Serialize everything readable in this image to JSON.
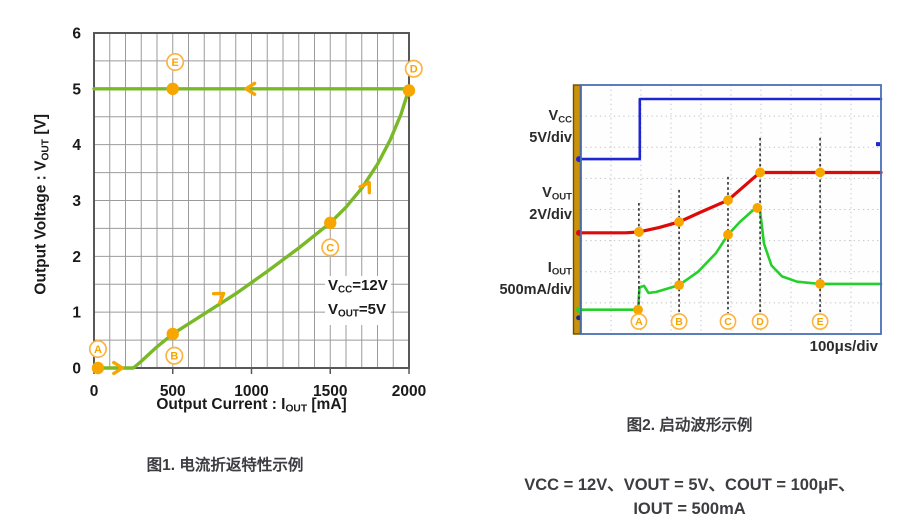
{
  "colors": {
    "fig1_green": "#79b928",
    "orange": "#f7a600",
    "orange_light": "#fbb342",
    "grid": "#9b9b9b",
    "frame": "#58585a",
    "tick_text": "#1a1a1a",
    "scope_blue": "#2026cf",
    "scope_red": "#dd0a0a",
    "scope_green": "#25d02a",
    "scope_border": "#4a6fb5",
    "scope_bar_fill": "#c8920a",
    "scope_bar_edge": "#6b4e00",
    "scope_grid_dot": "#bcc2cc",
    "dashed_line": "#3a3a3a",
    "aux_marker": "#1a2b8c"
  },
  "fig1": {
    "caption": "图1. 电流折返特性示例",
    "ylabel_parts": {
      "pre": "Output Voltage : V",
      "sub": "OUT",
      "post": " [V]"
    },
    "xlabel_parts": {
      "pre": "Output Current : I",
      "sub": "OUT",
      "post": " [mA]"
    },
    "annotation": {
      "line1": {
        "pre": "V",
        "sub": "CC",
        "post": "=12V"
      },
      "line2": {
        "pre": "V",
        "sub": "OUT",
        "post": "=5V"
      }
    }
  },
  "fig2": {
    "caption": "图2. 启动波形示例",
    "timebase_label": "100μs/div",
    "channel_labels": [
      {
        "pre": "V",
        "sub": "CC",
        "scale": "5V/div"
      },
      {
        "pre": "V",
        "sub": "OUT",
        "scale": "2V/div"
      },
      {
        "pre": "I",
        "sub": "OUT",
        "scale": "500mA/div"
      }
    ],
    "conditions": [
      "VCC = 12V、VOUT = 5V、COUT = 100μF、",
      "IOUT = 500mA"
    ]
  },
  "chart_data": [
    {
      "type": "line",
      "title": "图1. 电流折返特性示例",
      "xlabel": "Output Current : IOUT [mA]",
      "ylabel": "Output Voltage : VOUT [V]",
      "xlim": [
        0,
        2000
      ],
      "ylim": [
        0,
        6
      ],
      "x_major_ticks": [
        0,
        500,
        1000,
        1500,
        2000
      ],
      "y_major_ticks": [
        0,
        1,
        2,
        3,
        4,
        5,
        6
      ],
      "x_minor_step": 100,
      "y_minor_step": 0.5,
      "grid": true,
      "series": [
        {
          "name": "foldback-rise",
          "points": [
            [
              0,
              0
            ],
            [
              120,
              0
            ],
            [
              250,
              0
            ],
            [
              300,
              0.12
            ],
            [
              400,
              0.38
            ],
            [
              500,
              0.61
            ],
            [
              700,
              0.97
            ],
            [
              900,
              1.33
            ],
            [
              1100,
              1.73
            ],
            [
              1300,
              2.15
            ],
            [
              1500,
              2.6
            ],
            [
              1600,
              2.88
            ],
            [
              1700,
              3.22
            ],
            [
              1800,
              3.65
            ],
            [
              1880,
              4.08
            ],
            [
              1950,
              4.55
            ],
            [
              2000,
              5.0
            ]
          ]
        },
        {
          "name": "foldback-return",
          "points": [
            [
              2000,
              5.0
            ],
            [
              0,
              5.0
            ]
          ]
        }
      ],
      "markers": [
        {
          "id": "A",
          "dot": [
            25,
            0
          ],
          "label_pos": [
            25,
            0.34
          ]
        },
        {
          "id": "B",
          "dot": [
            500,
            0.61
          ],
          "label_pos": [
            510,
            0.22
          ]
        },
        {
          "id": "C",
          "dot": [
            1500,
            2.6
          ],
          "label_pos": [
            1500,
            2.16
          ]
        },
        {
          "id": "D",
          "dot": [
            2000,
            4.97
          ],
          "label_pos": [
            2030,
            5.36
          ]
        },
        {
          "id": "E",
          "dot": [
            500,
            5.0
          ],
          "label_pos": [
            515,
            5.48
          ]
        }
      ],
      "arrows": [
        {
          "x": 170,
          "y": 0,
          "angle": 0
        },
        {
          "x": 815,
          "y": 1.32,
          "angle": -34
        },
        {
          "x": 1742,
          "y": 3.3,
          "angle": -58
        },
        {
          "x": 975,
          "y": 5.0,
          "angle": 180
        }
      ],
      "annotation_text": [
        "VCC=12V",
        "VOUT=5V"
      ]
    },
    {
      "type": "line",
      "title": "图2. 启动波形示例",
      "x_divisions": 10,
      "y_divisions": 8,
      "timebase": "100μs/div",
      "channels": [
        {
          "name": "VCC",
          "scale": "5V/div",
          "color_key": "scope_blue",
          "ground_div": 5.62,
          "points": [
            [
              0,
              5.62
            ],
            [
              1.96,
              5.62
            ],
            [
              1.96,
              7.55
            ],
            [
              10,
              7.55
            ]
          ]
        },
        {
          "name": "VOUT",
          "scale": "2V/div",
          "color_key": "scope_red",
          "ground_div": 3.25,
          "points": [
            [
              0,
              3.25
            ],
            [
              1.5,
              3.25
            ],
            [
              1.93,
              3.28
            ],
            [
              2.6,
              3.42
            ],
            [
              3.27,
              3.6
            ],
            [
              4.0,
              3.92
            ],
            [
              4.9,
              4.3
            ],
            [
              5.5,
              4.8
            ],
            [
              5.95,
              5.18
            ],
            [
              6.05,
              5.19
            ],
            [
              10,
              5.19
            ]
          ]
        },
        {
          "name": "IOUT",
          "scale": "500mA/div",
          "color_key": "scope_green",
          "ground_div": 0.78,
          "points": [
            [
              0,
              0.78
            ],
            [
              1.9,
              0.78
            ],
            [
              1.95,
              1.5
            ],
            [
              2.1,
              1.55
            ],
            [
              2.25,
              1.32
            ],
            [
              2.5,
              1.35
            ],
            [
              3.27,
              1.57
            ],
            [
              3.9,
              2.0
            ],
            [
              4.5,
              2.6
            ],
            [
              4.9,
              3.19
            ],
            [
              5.3,
              3.6
            ],
            [
              5.7,
              3.95
            ],
            [
              5.88,
              4.07
            ],
            [
              5.97,
              3.95
            ],
            [
              6.1,
              2.9
            ],
            [
              6.35,
              2.2
            ],
            [
              6.7,
              1.85
            ],
            [
              7.2,
              1.68
            ],
            [
              7.97,
              1.61
            ],
            [
              10,
              1.61
            ]
          ]
        }
      ],
      "event_lines": [
        {
          "id": "A",
          "x": 1.93,
          "top": 4.21
        },
        {
          "id": "B",
          "x": 3.27,
          "top": 4.63
        },
        {
          "id": "C",
          "x": 4.9,
          "top": 5.05
        },
        {
          "id": "D",
          "x": 5.97,
          "top": 6.3
        },
        {
          "id": "E",
          "x": 7.97,
          "top": 6.3
        }
      ],
      "event_dots": {
        "scope_red": [
          [
            1.93,
            3.28
          ],
          [
            3.27,
            3.6
          ],
          [
            4.9,
            4.3
          ],
          [
            5.97,
            5.19
          ],
          [
            7.97,
            5.19
          ]
        ],
        "scope_green": [
          [
            1.9,
            0.78
          ],
          [
            3.27,
            1.57
          ],
          [
            4.9,
            3.19
          ],
          [
            5.88,
            4.05
          ],
          [
            7.97,
            1.61
          ]
        ]
      },
      "trigger_mark_div": 6.1
    }
  ]
}
